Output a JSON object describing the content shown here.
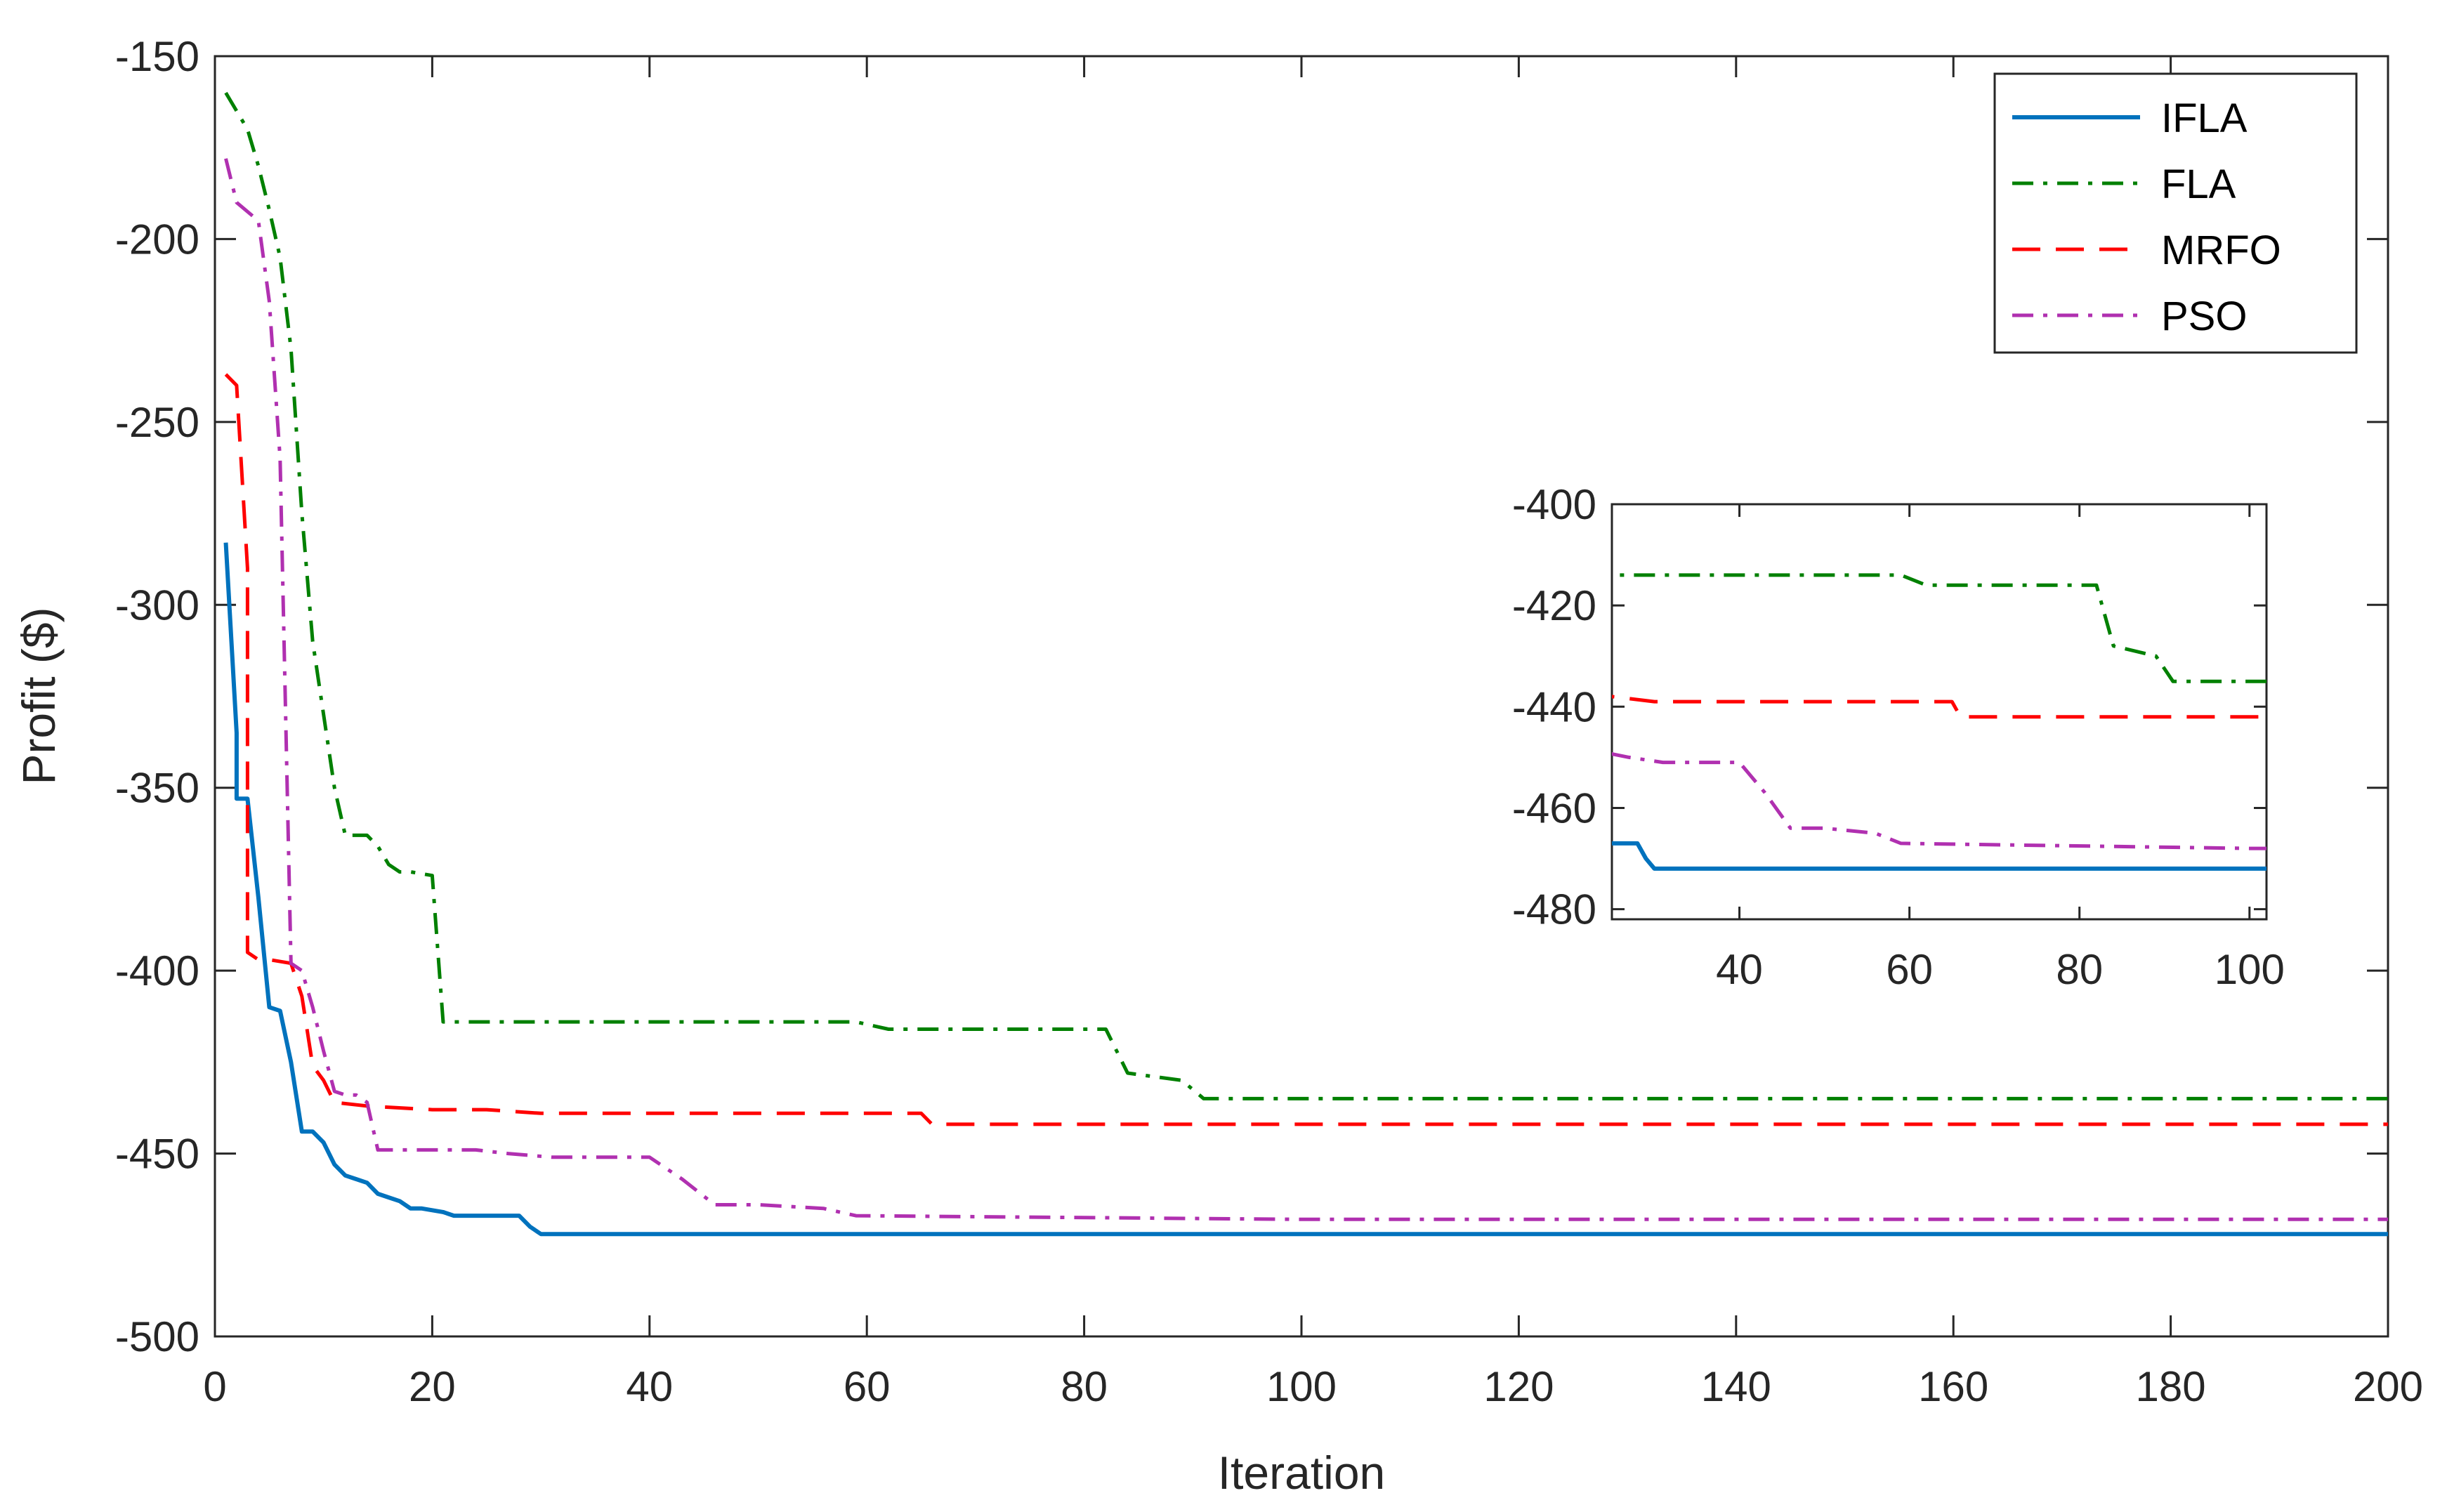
{
  "chart_data": [
    {
      "type": "line",
      "title": "",
      "xlabel": "Iteration",
      "ylabel": "Profit ($)",
      "xlim": [
        0,
        200
      ],
      "ylim": [
        -500,
        -150
      ],
      "xticks": [
        0,
        20,
        40,
        60,
        80,
        100,
        120,
        140,
        160,
        180,
        200
      ],
      "yticks": [
        -150,
        -200,
        -250,
        -300,
        -350,
        -400,
        -450,
        -500
      ],
      "grid": false,
      "legend_position": "top-right",
      "series": [
        {
          "name": "IFLA",
          "color": "#0072BD",
          "style": "solid",
          "points": [
            [
              1,
              -283
            ],
            [
              2,
              -335
            ],
            [
              2,
              -353
            ],
            [
              3,
              -353
            ],
            [
              4,
              -380
            ],
            [
              5,
              -410
            ],
            [
              6,
              -411
            ],
            [
              7,
              -425
            ],
            [
              8,
              -444
            ],
            [
              9,
              -444
            ],
            [
              10,
              -447
            ],
            [
              11,
              -453
            ],
            [
              12,
              -456
            ],
            [
              13,
              -457
            ],
            [
              14,
              -458
            ],
            [
              15,
              -461
            ],
            [
              16,
              -462
            ],
            [
              17,
              -463
            ],
            [
              18,
              -465
            ],
            [
              19,
              -465
            ],
            [
              21,
              -466
            ],
            [
              22,
              -467
            ],
            [
              23,
              -467
            ],
            [
              28,
              -467
            ],
            [
              29,
              -470
            ],
            [
              30,
              -472
            ],
            [
              60,
              -472
            ],
            [
              100,
              -472
            ],
            [
              140,
              -472
            ],
            [
              200,
              -472
            ]
          ]
        },
        {
          "name": "FLA",
          "color": "#008000",
          "style": "dashdot",
          "points": [
            [
              1,
              -160
            ],
            [
              2,
              -165
            ],
            [
              3,
              -170
            ],
            [
              4,
              -180
            ],
            [
              5,
              -192
            ],
            [
              6,
              -205
            ],
            [
              7,
              -230
            ],
            [
              8,
              -275
            ],
            [
              9,
              -310
            ],
            [
              10,
              -330
            ],
            [
              11,
              -350
            ],
            [
              12,
              -363
            ],
            [
              13,
              -363
            ],
            [
              14,
              -363
            ],
            [
              15,
              -366
            ],
            [
              16,
              -371
            ],
            [
              17,
              -373
            ],
            [
              18,
              -373
            ],
            [
              20,
              -374
            ],
            [
              21,
              -414
            ],
            [
              40,
              -414
            ],
            [
              59,
              -414
            ],
            [
              62,
              -416
            ],
            [
              82,
              -416
            ],
            [
              84,
              -428
            ],
            [
              89,
              -430
            ],
            [
              91,
              -435
            ],
            [
              150,
              -435
            ],
            [
              200,
              -435
            ]
          ]
        },
        {
          "name": "MRFO",
          "color": "#FF0000",
          "style": "dashed",
          "points": [
            [
              1,
              -237
            ],
            [
              2,
              -240
            ],
            [
              3,
              -290
            ],
            [
              3,
              -395
            ],
            [
              4,
              -397
            ],
            [
              5,
              -397
            ],
            [
              7,
              -398
            ],
            [
              8,
              -407
            ],
            [
              9,
              -426
            ],
            [
              10,
              -430
            ],
            [
              11,
              -436
            ],
            [
              14,
              -437
            ],
            [
              20,
              -438
            ],
            [
              25,
              -438
            ],
            [
              30,
              -439
            ],
            [
              65,
              -439
            ],
            [
              66,
              -442
            ],
            [
              120,
              -442
            ],
            [
              200,
              -442
            ]
          ]
        },
        {
          "name": "PSO",
          "color": "#B030B0",
          "style": "dashdot",
          "points": [
            [
              1,
              -178
            ],
            [
              2,
              -190
            ],
            [
              4,
              -195
            ],
            [
              5,
              -217
            ],
            [
              6,
              -260
            ],
            [
              7,
              -398
            ],
            [
              8,
              -400
            ],
            [
              9,
              -410
            ],
            [
              10,
              -422
            ],
            [
              11,
              -433
            ],
            [
              12,
              -434
            ],
            [
              13,
              -434
            ],
            [
              14,
              -436
            ],
            [
              15,
              -449
            ],
            [
              20,
              -449
            ],
            [
              24,
              -449
            ],
            [
              27,
              -450
            ],
            [
              31,
              -451
            ],
            [
              40,
              -451
            ],
            [
              43,
              -457
            ],
            [
              46,
              -464
            ],
            [
              50,
              -464
            ],
            [
              56,
              -465
            ],
            [
              59,
              -467
            ],
            [
              100,
              -468
            ],
            [
              150,
              -468
            ],
            [
              200,
              -468
            ]
          ]
        }
      ]
    },
    {
      "type": "line",
      "title": "",
      "inset": true,
      "xlim": [
        25,
        102
      ],
      "ylim": [
        -482,
        -400
      ],
      "xticks": [
        40,
        60,
        80,
        100
      ],
      "yticks": [
        -400,
        -420,
        -440,
        -460,
        -480
      ],
      "grid": false,
      "series_ref": [
        "IFLA",
        "FLA",
        "MRFO",
        "PSO"
      ]
    }
  ]
}
